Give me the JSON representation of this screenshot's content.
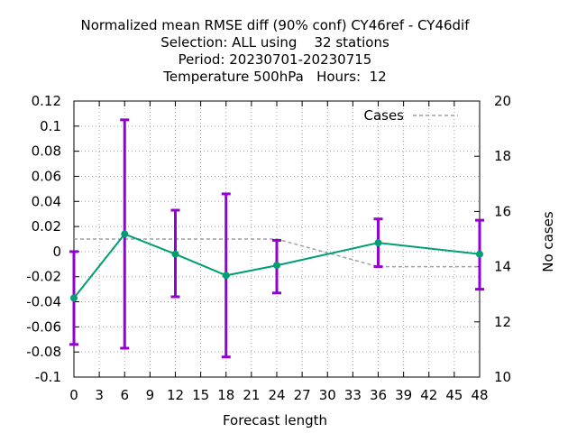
{
  "chart_data": {
    "type": "line",
    "title_lines": [
      "Normalized mean RMSE diff (90% conf) CY46ref - CY46dif",
      "Selection: ALL using    32 stations",
      "Period: 20230701-20230715",
      "Temperature 500hPa   Hours:  12"
    ],
    "xlabel": "Forecast length",
    "ylabel": "",
    "y2label": "No cases",
    "xlim": [
      0,
      48
    ],
    "ylim": [
      -0.1,
      0.12
    ],
    "y2lim": [
      10,
      20
    ],
    "x_ticks": [
      "0",
      "3",
      "6",
      "9",
      "12",
      "15",
      "18",
      "21",
      "24",
      "27",
      "30",
      "33",
      "36",
      "39",
      "42",
      "45",
      "48"
    ],
    "y_ticks": [
      "-0.1",
      "-0.08",
      "-0.06",
      "-0.04",
      "-0.02",
      "0",
      "0.02",
      "0.04",
      "0.06",
      "0.08",
      "0.1",
      "0.12"
    ],
    "y2_ticks": [
      "10",
      "12",
      "14",
      "16",
      "18",
      "20"
    ],
    "grid": true,
    "legend_position": "top-right",
    "series": [
      {
        "name": "",
        "axis": "left",
        "color": "#009e73",
        "x": [
          0,
          6,
          12,
          18,
          24,
          36,
          48
        ],
        "y": [
          -0.037,
          0.014,
          -0.002,
          -0.019,
          -0.011,
          0.007,
          -0.002
        ],
        "err_low": [
          -0.074,
          -0.077,
          -0.036,
          -0.084,
          -0.033,
          -0.012,
          -0.03
        ],
        "err_high": [
          0.0,
          0.105,
          0.033,
          0.046,
          0.009,
          0.026,
          0.025
        ],
        "error_bar_color": "#9400d3"
      },
      {
        "name": "Cases",
        "axis": "right",
        "color": "#a0a0a0",
        "style": "dashed",
        "x": [
          0,
          6,
          12,
          18,
          24,
          36,
          48
        ],
        "y": [
          15,
          15,
          15,
          15,
          15,
          14,
          14
        ]
      }
    ]
  }
}
